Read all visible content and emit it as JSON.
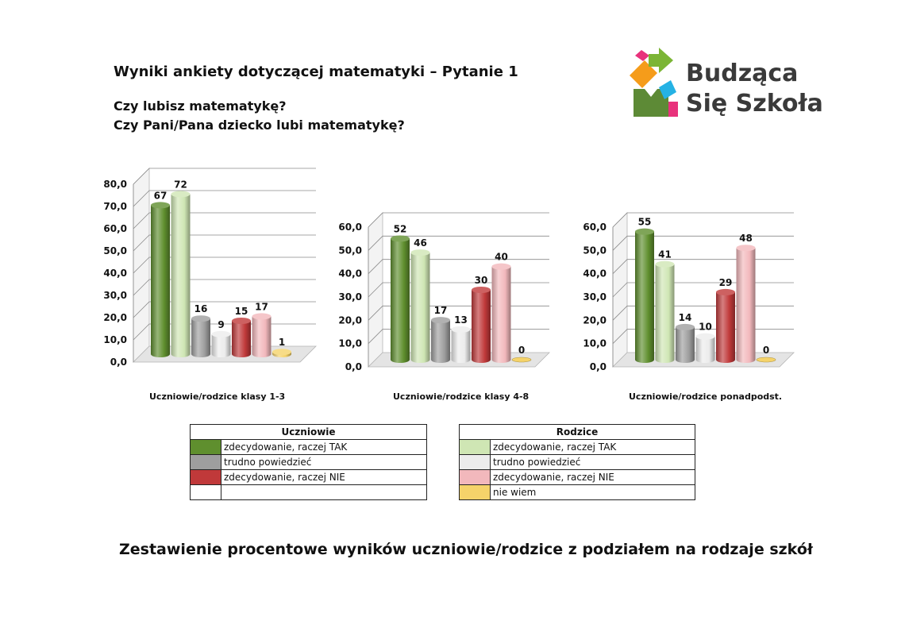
{
  "header": {
    "title": "Wyniki ankiety dotyczącej matematyki – Pytanie 1",
    "question1": "Czy lubisz matematykę?",
    "question2": "Czy Pani/Pana dziecko lubi matematykę?"
  },
  "logo": {
    "line1": "Budząca",
    "line2": "Się Szkoła"
  },
  "colors": {
    "u_tak": "#5f8f2e",
    "u_trudno": "#9e9e9e",
    "u_nie": "#c0393a",
    "r_tak": "#cfe6b4",
    "r_trudno": "#ececec",
    "r_nie": "#f2b8bc",
    "r_niewiem": "#f5d36a"
  },
  "chart_data": [
    {
      "type": "bar",
      "title": "",
      "xlabel": "Uczniowie/rodzice klasy 1-3",
      "ylabel": "",
      "ylim": [
        0,
        80
      ],
      "ticks": [
        "0,0",
        "10,0",
        "20,0",
        "30,0",
        "40,0",
        "50,0",
        "60,0",
        "70,0",
        "80,0"
      ],
      "series": [
        {
          "name": "Uczniowie – zdecydowanie, raczej TAK",
          "value": 67
        },
        {
          "name": "Rodzice – zdecydowanie, raczej TAK",
          "value": 72
        },
        {
          "name": "Uczniowie – trudno powiedzieć",
          "value": 16
        },
        {
          "name": "Rodzice – trudno powiedzieć",
          "value": 9
        },
        {
          "name": "Uczniowie – zdecydowanie, raczej NIE",
          "value": 15
        },
        {
          "name": "Rodzice – zdecydowanie, raczej NIE",
          "value": 17
        },
        {
          "name": "Rodzice – nie wiem",
          "value": 1
        }
      ]
    },
    {
      "type": "bar",
      "title": "",
      "xlabel": "Uczniowie/rodzice klasy 4-8",
      "ylabel": "",
      "ylim": [
        0,
        60
      ],
      "ticks": [
        "0,0",
        "10,0",
        "20,0",
        "30,0",
        "40,0",
        "50,0",
        "60,0"
      ],
      "series": [
        {
          "name": "Uczniowie – zdecydowanie, raczej TAK",
          "value": 52
        },
        {
          "name": "Rodzice – zdecydowanie, raczej TAK",
          "value": 46
        },
        {
          "name": "Uczniowie – trudno powiedzieć",
          "value": 17
        },
        {
          "name": "Rodzice – trudno powiedzieć",
          "value": 13
        },
        {
          "name": "Uczniowie – zdecydowanie, raczej NIE",
          "value": 30
        },
        {
          "name": "Rodzice – zdecydowanie, raczej NIE",
          "value": 40
        },
        {
          "name": "Rodzice – nie wiem",
          "value": 0
        }
      ]
    },
    {
      "type": "bar",
      "title": "",
      "xlabel": "Uczniowie/rodzice ponadpodst.",
      "ylabel": "",
      "ylim": [
        0,
        60
      ],
      "ticks": [
        "0,0",
        "10,0",
        "20,0",
        "30,0",
        "40,0",
        "50,0",
        "60,0"
      ],
      "series": [
        {
          "name": "Uczniowie – zdecydowanie, raczej TAK",
          "value": 55
        },
        {
          "name": "Rodzice – zdecydowanie, raczej TAK",
          "value": 41
        },
        {
          "name": "Uczniowie – trudno powiedzieć",
          "value": 14
        },
        {
          "name": "Rodzice – trudno powiedzieć",
          "value": 10
        },
        {
          "name": "Uczniowie – zdecydowanie, raczej NIE",
          "value": 29
        },
        {
          "name": "Rodzice – zdecydowanie, raczej NIE",
          "value": 48
        },
        {
          "name": "Rodzice – nie wiem",
          "value": 0
        }
      ]
    }
  ],
  "legend": {
    "uczniowie": {
      "title": "Uczniowie",
      "items": [
        "zdecydowanie, raczej TAK",
        "trudno powiedzieć",
        "zdecydowanie, raczej NIE"
      ]
    },
    "rodzice": {
      "title": "Rodzice",
      "items": [
        "zdecydowanie, raczej TAK",
        "trudno powiedzieć",
        "zdecydowanie, raczej NIE",
        "nie wiem"
      ]
    }
  },
  "footer": "Zestawienie procentowe wyników uczniowie/rodzice z podziałem na rodzaje szkół"
}
